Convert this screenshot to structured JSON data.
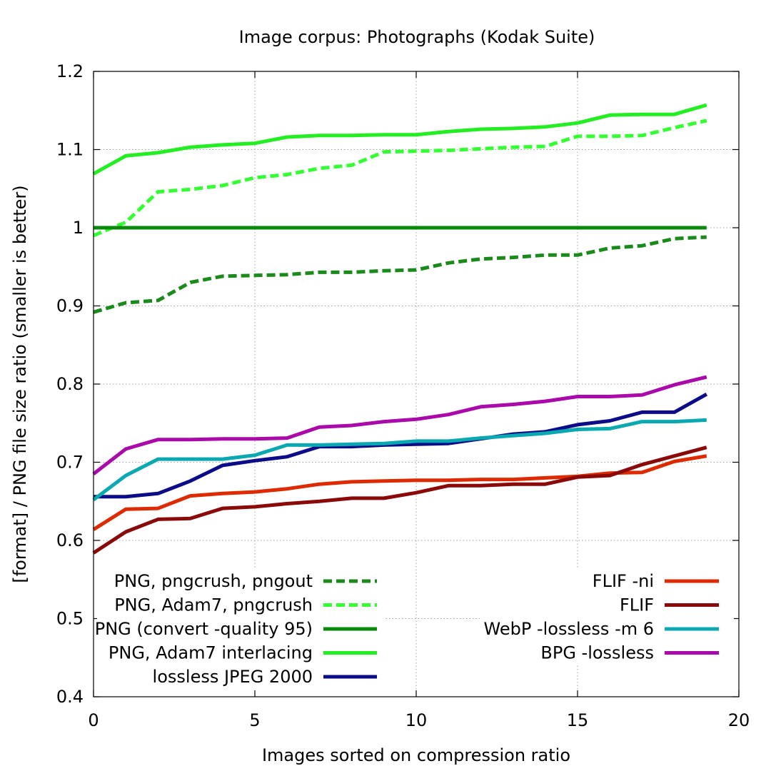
{
  "chart_data": {
    "type": "line",
    "title": "Image corpus: Photographs (Kodak Suite)",
    "xlabel": "Images sorted on compression ratio",
    "ylabel": "[format] / PNG file size ratio (smaller is better)",
    "xlim": [
      0,
      20
    ],
    "ylim": [
      0.4,
      1.2
    ],
    "xticks": [
      0,
      5,
      10,
      15,
      20
    ],
    "yticks": [
      0.4,
      0.5,
      0.6,
      0.7,
      0.8,
      0.9,
      1,
      1.1,
      1.2
    ],
    "ytick_labels": [
      "0.4",
      "0.5",
      "0.6",
      "0.7",
      "0.8",
      "0.9",
      "1",
      "1.1",
      "1.2"
    ],
    "xtick_labels": [
      "0",
      "5",
      "10",
      "15",
      "20"
    ],
    "grid": true,
    "x": [
      0,
      1,
      2,
      3,
      4,
      5,
      6,
      7,
      8,
      9,
      10,
      11,
      12,
      13,
      14,
      15,
      16,
      17,
      18,
      19
    ],
    "series": [
      {
        "name": "PNG, pngcrush, pngout",
        "color": "#1a8a1a",
        "dash": "dashed",
        "legend": "left",
        "values": [
          0.892,
          0.904,
          0.907,
          0.93,
          0.938,
          0.939,
          0.94,
          0.943,
          0.943,
          0.945,
          0.946,
          0.955,
          0.96,
          0.962,
          0.965,
          0.965,
          0.974,
          0.977,
          0.986,
          0.988
        ]
      },
      {
        "name": "PNG, Adam7, pngcrush",
        "color": "#33ff33",
        "dash": "dashed",
        "legend": "left",
        "values": [
          0.99,
          1.007,
          1.046,
          1.049,
          1.054,
          1.064,
          1.068,
          1.076,
          1.08,
          1.097,
          1.098,
          1.099,
          1.101,
          1.103,
          1.104,
          1.117,
          1.117,
          1.118,
          1.128,
          1.137
        ]
      },
      {
        "name": "PNG (convert -quality 95)",
        "color": "#0a8a0a",
        "dash": "solid",
        "legend": "left",
        "values": [
          1,
          1,
          1,
          1,
          1,
          1,
          1,
          1,
          1,
          1,
          1,
          1,
          1,
          1,
          1,
          1,
          1,
          1,
          1,
          1
        ]
      },
      {
        "name": "PNG, Adam7 interlacing",
        "color": "#22ee22",
        "dash": "solid",
        "legend": "left",
        "values": [
          1.069,
          1.092,
          1.096,
          1.103,
          1.106,
          1.108,
          1.116,
          1.118,
          1.118,
          1.119,
          1.119,
          1.123,
          1.126,
          1.127,
          1.129,
          1.134,
          1.144,
          1.145,
          1.145,
          1.157
        ]
      },
      {
        "name": "lossless JPEG 2000",
        "color": "#0c0c88",
        "dash": "solid",
        "legend": "left",
        "values": [
          0.656,
          0.656,
          0.66,
          0.676,
          0.696,
          0.702,
          0.707,
          0.72,
          0.72,
          0.722,
          0.723,
          0.724,
          0.73,
          0.736,
          0.739,
          0.748,
          0.753,
          0.764,
          0.764,
          0.787
        ]
      },
      {
        "name": "FLIF -ni",
        "color": "#dd2a00",
        "dash": "solid",
        "legend": "right",
        "values": [
          0.614,
          0.64,
          0.641,
          0.657,
          0.66,
          0.662,
          0.666,
          0.672,
          0.675,
          0.676,
          0.677,
          0.677,
          0.678,
          0.678,
          0.68,
          0.682,
          0.686,
          0.687,
          0.701,
          0.708
        ]
      },
      {
        "name": "FLIF",
        "color": "#8a0a0a",
        "dash": "solid",
        "legend": "right",
        "values": [
          0.584,
          0.611,
          0.627,
          0.628,
          0.641,
          0.643,
          0.647,
          0.65,
          0.654,
          0.654,
          0.661,
          0.67,
          0.67,
          0.672,
          0.672,
          0.681,
          0.683,
          0.697,
          0.708,
          0.719
        ]
      },
      {
        "name": "WebP -lossless -m 6",
        "color": "#0aa8b0",
        "dash": "solid",
        "legend": "right",
        "values": [
          0.652,
          0.683,
          0.704,
          0.704,
          0.704,
          0.709,
          0.722,
          0.722,
          0.723,
          0.724,
          0.727,
          0.727,
          0.731,
          0.734,
          0.737,
          0.742,
          0.743,
          0.752,
          0.752,
          0.754
        ]
      },
      {
        "name": "BPG -lossless",
        "color": "#aa0aaa",
        "dash": "solid",
        "legend": "right",
        "values": [
          0.685,
          0.717,
          0.729,
          0.729,
          0.73,
          0.73,
          0.731,
          0.745,
          0.747,
          0.752,
          0.755,
          0.761,
          0.771,
          0.774,
          0.778,
          0.784,
          0.784,
          0.786,
          0.799,
          0.809
        ]
      }
    ]
  }
}
